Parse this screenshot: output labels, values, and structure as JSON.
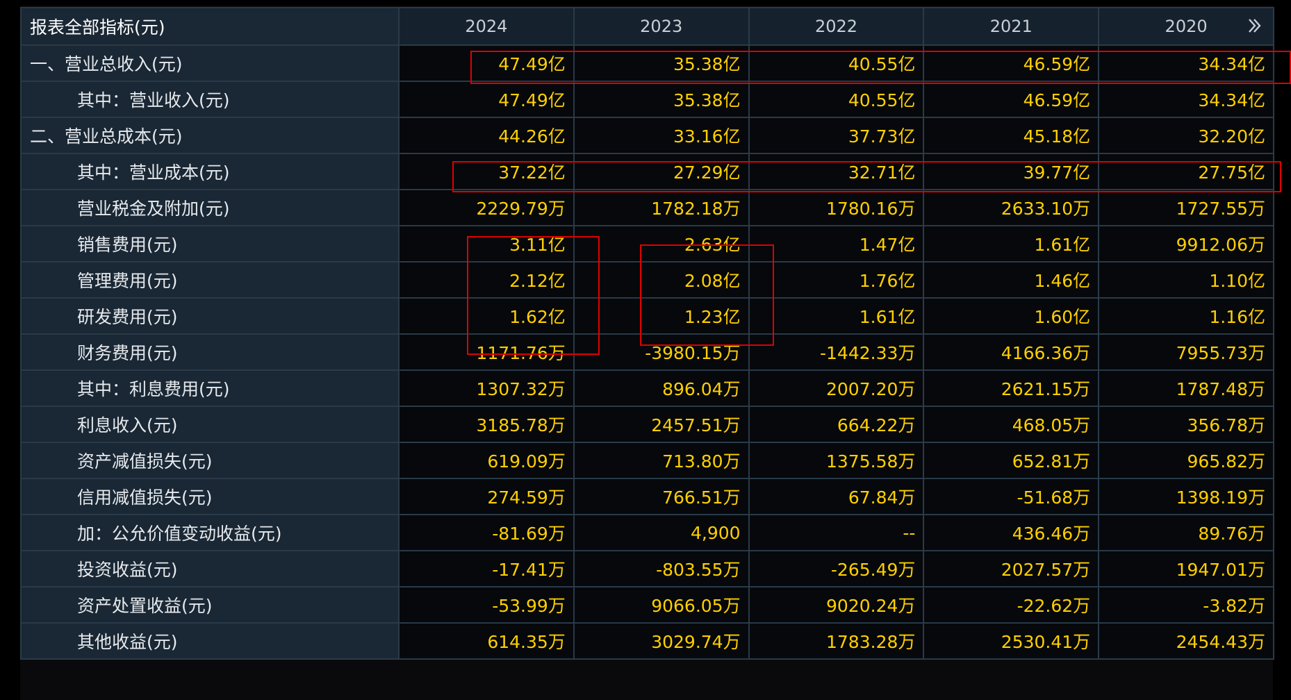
{
  "table": {
    "header_label": "报表全部指标(元)",
    "years": [
      "2024",
      "2023",
      "2022",
      "2021",
      "2020"
    ],
    "more_icon": "double-chevron-right-icon",
    "rows": [
      {
        "label": "一、营业总收入(元)",
        "indent": false,
        "values": [
          "47.49亿",
          "35.38亿",
          "40.55亿",
          "46.59亿",
          "34.34亿"
        ]
      },
      {
        "label": "其中：营业收入(元)",
        "indent": true,
        "values": [
          "47.49亿",
          "35.38亿",
          "40.55亿",
          "46.59亿",
          "34.34亿"
        ]
      },
      {
        "label": "二、营业总成本(元)",
        "indent": false,
        "values": [
          "44.26亿",
          "33.16亿",
          "37.73亿",
          "45.18亿",
          "32.20亿"
        ]
      },
      {
        "label": "其中：营业成本(元)",
        "indent": true,
        "values": [
          "37.22亿",
          "27.29亿",
          "32.71亿",
          "39.77亿",
          "27.75亿"
        ]
      },
      {
        "label": "营业税金及附加(元)",
        "indent": true,
        "values": [
          "2229.79万",
          "1782.18万",
          "1780.16万",
          "2633.10万",
          "1727.55万"
        ]
      },
      {
        "label": "销售费用(元)",
        "indent": true,
        "values": [
          "3.11亿",
          "2.63亿",
          "1.47亿",
          "1.61亿",
          "9912.06万"
        ]
      },
      {
        "label": "管理费用(元)",
        "indent": true,
        "values": [
          "2.12亿",
          "2.08亿",
          "1.76亿",
          "1.46亿",
          "1.10亿"
        ]
      },
      {
        "label": "研发费用(元)",
        "indent": true,
        "values": [
          "1.62亿",
          "1.23亿",
          "1.61亿",
          "1.60亿",
          "1.16亿"
        ]
      },
      {
        "label": "财务费用(元)",
        "indent": true,
        "values": [
          "-1171.76万",
          "-3980.15万",
          "-1442.33万",
          "4166.36万",
          "7955.73万"
        ]
      },
      {
        "label": "其中：利息费用(元)",
        "indent": true,
        "values": [
          "1307.32万",
          "896.04万",
          "2007.20万",
          "2621.15万",
          "1787.48万"
        ]
      },
      {
        "label": "利息收入(元)",
        "indent": true,
        "values": [
          "3185.78万",
          "2457.51万",
          "664.22万",
          "468.05万",
          "356.78万"
        ]
      },
      {
        "label": "资产减值损失(元)",
        "indent": true,
        "values": [
          "619.09万",
          "713.80万",
          "1375.58万",
          "652.81万",
          "965.82万"
        ]
      },
      {
        "label": "信用减值损失(元)",
        "indent": true,
        "values": [
          "274.59万",
          "766.51万",
          "67.84万",
          "-51.68万",
          "1398.19万"
        ]
      },
      {
        "label": "加：公允价值变动收益(元)",
        "indent": true,
        "values": [
          "-81.69万",
          "4,900",
          "--",
          "436.46万",
          "89.76万"
        ]
      },
      {
        "label": "投资收益(元)",
        "indent": true,
        "values": [
          "-17.41万",
          "-803.55万",
          "-265.49万",
          "2027.57万",
          "1947.01万"
        ]
      },
      {
        "label": "资产处置收益(元)",
        "indent": true,
        "values": [
          "-53.99万",
          "9066.05万",
          "9020.24万",
          "-22.62万",
          "-3.82万"
        ]
      },
      {
        "label": "其他收益(元)",
        "indent": true,
        "values": [
          "614.35万",
          "3029.74万",
          "1783.28万",
          "2530.41万",
          "2454.43万"
        ]
      }
    ]
  },
  "colors": {
    "value_text": "#ffd000",
    "label_text": "#e6eaee",
    "highlight_border": "#e00000",
    "label_background": "#1a2734",
    "grid_line": "#2a3a48"
  }
}
